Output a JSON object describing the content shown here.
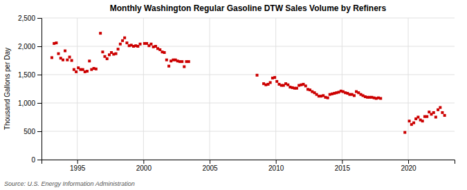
{
  "chart_data": {
    "type": "scatter",
    "title": "Monthly Washington Regular Gasoline DTW Sales Volume by Refiners",
    "ylabel": "Thousand Gallons per Day",
    "annotations": [
      "Source: U.S. Energy Information Administration"
    ],
    "color": "#cc0000",
    "marker": "square",
    "grid": true,
    "xlim": [
      1992.3,
      2023.5
    ],
    "xticks": [
      1995,
      2000,
      2005,
      2010,
      2015,
      2020
    ],
    "ylim": [
      0,
      2500
    ],
    "yticks": [
      0,
      500,
      {
        "value": 1000,
        "label": "1,000"
      },
      {
        "value": 1500,
        "label": "1,500"
      },
      {
        "value": 2000,
        "label": "2,000"
      },
      {
        "value": 2500,
        "label": "2,500"
      }
    ],
    "x": [
      1993.08,
      1993.25,
      1993.42,
      1993.58,
      1993.75,
      1993.92,
      1994.08,
      1994.25,
      1994.42,
      1994.58,
      1994.75,
      1994.92,
      1995.08,
      1995.25,
      1995.42,
      1995.58,
      1995.75,
      1995.92,
      1996.08,
      1996.25,
      1996.42,
      1996.75,
      1996.92,
      1997.08,
      1997.25,
      1997.42,
      1997.58,
      1997.75,
      1997.92,
      1998.08,
      1998.25,
      1998.42,
      1998.58,
      1998.75,
      1998.92,
      1999.08,
      1999.25,
      1999.42,
      1999.58,
      1999.75,
      2000.08,
      2000.25,
      2000.42,
      2000.58,
      2000.75,
      2000.92,
      2001.08,
      2001.25,
      2001.42,
      2001.58,
      2001.75,
      2001.92,
      2002.08,
      2002.25,
      2002.42,
      2002.58,
      2002.75,
      2002.92,
      2003.08,
      2003.25,
      2003.42,
      2008.58,
      2009.08,
      2009.25,
      2009.42,
      2009.58,
      2009.75,
      2009.92,
      2010.08,
      2010.25,
      2010.42,
      2010.58,
      2010.75,
      2010.92,
      2011.08,
      2011.25,
      2011.42,
      2011.58,
      2011.75,
      2011.92,
      2012.08,
      2012.25,
      2012.42,
      2012.58,
      2012.75,
      2012.92,
      2013.08,
      2013.25,
      2013.42,
      2013.58,
      2013.75,
      2013.92,
      2014.08,
      2014.25,
      2014.42,
      2014.58,
      2014.75,
      2014.92,
      2015.08,
      2015.25,
      2015.42,
      2015.58,
      2015.75,
      2015.92,
      2016.08,
      2016.25,
      2016.42,
      2016.58,
      2016.75,
      2016.92,
      2017.08,
      2017.25,
      2017.42,
      2017.58,
      2017.75,
      2017.92,
      2019.75,
      2020.08,
      2020.25,
      2020.42,
      2020.58,
      2020.75,
      2020.92,
      2021.08,
      2021.25,
      2021.42,
      2021.58,
      2021.75,
      2021.92,
      2022.08,
      2022.25,
      2022.42,
      2022.58,
      2022.75
    ],
    "values": [
      1800,
      2050,
      2060,
      1870,
      1790,
      1760,
      1920,
      1760,
      1810,
      1750,
      1590,
      1550,
      1620,
      1590,
      1590,
      1550,
      1560,
      1740,
      1590,
      1610,
      1600,
      2230,
      1900,
      1820,
      1780,
      1850,
      1890,
      1860,
      1870,
      1950,
      2040,
      2100,
      2150,
      2060,
      2010,
      2020,
      2000,
      2010,
      2000,
      2040,
      2050,
      2050,
      2010,
      2040,
      1990,
      2000,
      1960,
      1940,
      1900,
      1890,
      1760,
      1650,
      1740,
      1760,
      1760,
      1740,
      1730,
      1730,
      1640,
      1730,
      1730,
      1490,
      1340,
      1320,
      1330,
      1360,
      1440,
      1450,
      1380,
      1330,
      1310,
      1310,
      1340,
      1320,
      1280,
      1270,
      1260,
      1260,
      1310,
      1320,
      1330,
      1300,
      1240,
      1230,
      1200,
      1180,
      1150,
      1120,
      1120,
      1130,
      1100,
      1090,
      1150,
      1160,
      1170,
      1180,
      1190,
      1210,
      1200,
      1180,
      1170,
      1150,
      1150,
      1130,
      1200,
      1180,
      1150,
      1130,
      1110,
      1100,
      1100,
      1100,
      1090,
      1080,
      1090,
      1080,
      480,
      680,
      620,
      650,
      720,
      750,
      700,
      680,
      760,
      760,
      840,
      800,
      830,
      750,
      880,
      920,
      830,
      780
    ]
  }
}
